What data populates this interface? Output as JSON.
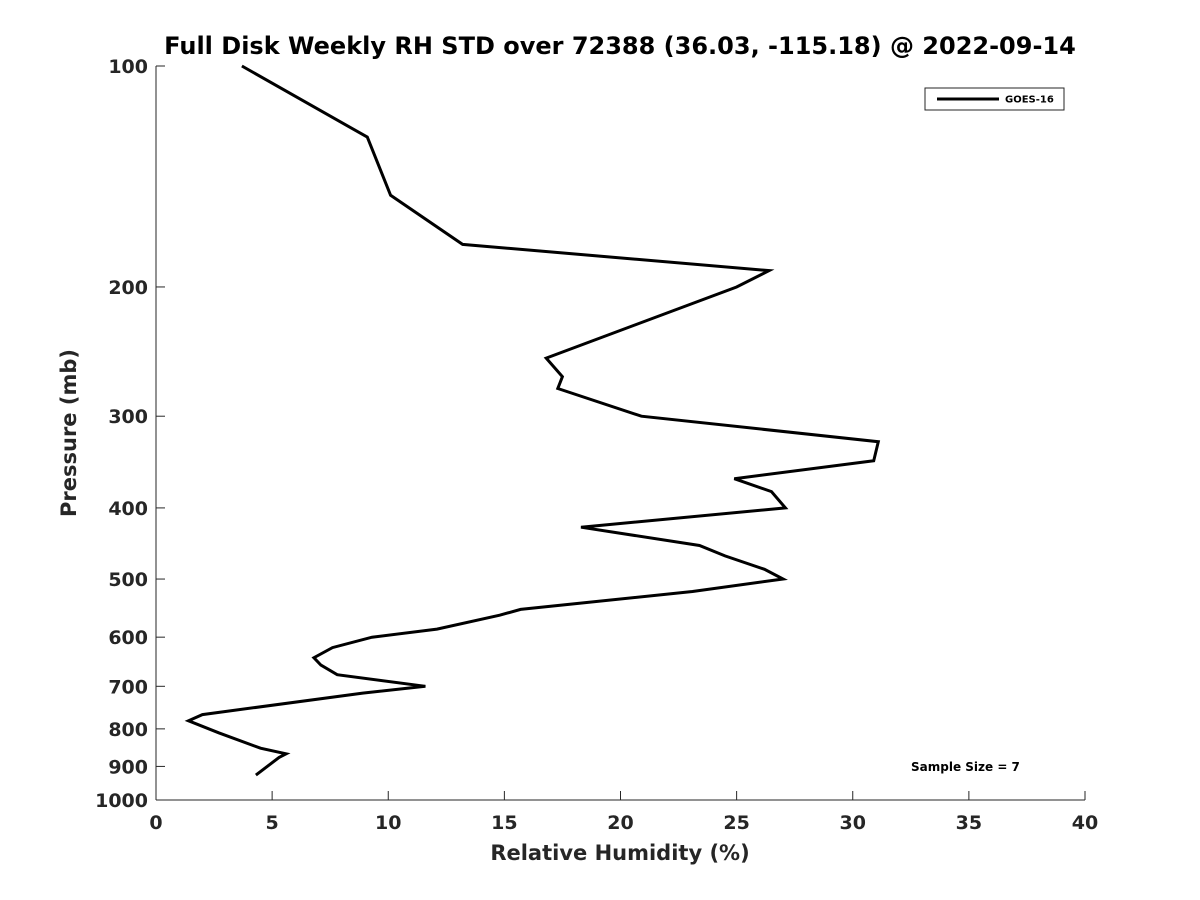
{
  "chart_data": {
    "type": "line",
    "title": "Full Disk Weekly RH STD over 72388 (36.03, -115.18) @ 2022-09-14",
    "xlabel": "Relative Humidity (%)",
    "ylabel": "Pressure (mb)",
    "xlim": [
      0,
      40
    ],
    "ylim": [
      100,
      1000
    ],
    "y_scale": "log",
    "y_reversed": true,
    "x_ticks": [
      "0",
      "5",
      "10",
      "15",
      "20",
      "25",
      "30",
      "35",
      "40"
    ],
    "y_ticks": [
      "100",
      "200",
      "300",
      "400",
      "500",
      "600",
      "700",
      "800",
      "900",
      "1000"
    ],
    "grid": false,
    "legend_position": "top-right",
    "annotation": "Sample Size = 7",
    "series": [
      {
        "name": "GOES-16",
        "color": "#000000",
        "points": [
          {
            "x": 3.7,
            "y": 100
          },
          {
            "x": 9.1,
            "y": 125
          },
          {
            "x": 10.1,
            "y": 150
          },
          {
            "x": 13.2,
            "y": 175
          },
          {
            "x": 26.4,
            "y": 190
          },
          {
            "x": 25.0,
            "y": 200
          },
          {
            "x": 16.8,
            "y": 250
          },
          {
            "x": 17.5,
            "y": 265
          },
          {
            "x": 17.3,
            "y": 275
          },
          {
            "x": 20.9,
            "y": 300
          },
          {
            "x": 31.1,
            "y": 325
          },
          {
            "x": 30.9,
            "y": 345
          },
          {
            "x": 24.9,
            "y": 365
          },
          {
            "x": 26.5,
            "y": 380
          },
          {
            "x": 27.1,
            "y": 400
          },
          {
            "x": 18.3,
            "y": 425
          },
          {
            "x": 23.4,
            "y": 450
          },
          {
            "x": 24.5,
            "y": 465
          },
          {
            "x": 26.2,
            "y": 485
          },
          {
            "x": 27.0,
            "y": 500
          },
          {
            "x": 23.1,
            "y": 520
          },
          {
            "x": 15.7,
            "y": 550
          },
          {
            "x": 14.8,
            "y": 560
          },
          {
            "x": 12.1,
            "y": 585
          },
          {
            "x": 9.3,
            "y": 600
          },
          {
            "x": 7.6,
            "y": 620
          },
          {
            "x": 6.8,
            "y": 640
          },
          {
            "x": 7.1,
            "y": 655
          },
          {
            "x": 7.8,
            "y": 675
          },
          {
            "x": 11.6,
            "y": 700
          },
          {
            "x": 8.9,
            "y": 715
          },
          {
            "x": 2.0,
            "y": 765
          },
          {
            "x": 1.4,
            "y": 780
          },
          {
            "x": 2.7,
            "y": 810
          },
          {
            "x": 4.5,
            "y": 850
          },
          {
            "x": 5.6,
            "y": 865
          },
          {
            "x": 5.3,
            "y": 875
          },
          {
            "x": 4.3,
            "y": 925
          }
        ]
      }
    ]
  }
}
